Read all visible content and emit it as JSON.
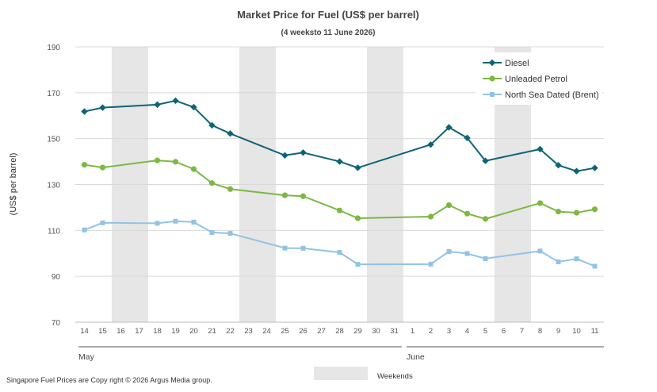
{
  "chart_data": {
    "type": "line",
    "title": "Market Price for Fuel (US$ per barrel)",
    "subtitle": "(4 weeksto 11 June 2026)",
    "ylabel": "(US$ per barrel)",
    "xlabel": "",
    "ylim": [
      70,
      190
    ],
    "yticks": [
      70,
      90,
      110,
      130,
      150,
      170,
      190
    ],
    "grid": true,
    "legend_position": "top-right",
    "x": [
      "14",
      "15",
      "16",
      "17",
      "18",
      "19",
      "20",
      "21",
      "22",
      "23",
      "24",
      "25",
      "26",
      "27",
      "28",
      "29",
      "30",
      "31",
      "1",
      "2",
      "3",
      "4",
      "5",
      "6",
      "7",
      "8",
      "9",
      "10",
      "11"
    ],
    "months": [
      {
        "label": "May",
        "start": "14",
        "end": "31"
      },
      {
        "label": "June",
        "start": "1",
        "end": "11"
      }
    ],
    "weekends": [
      [
        "16",
        "17"
      ],
      [
        "23",
        "24"
      ],
      [
        "30",
        "31"
      ],
      [
        "6",
        "7"
      ]
    ],
    "weekend_label": "Weekends",
    "series": [
      {
        "name": "Diesel",
        "color": "#0e6375",
        "marker": "diamond",
        "points": [
          {
            "x": "14",
            "y": 161.8
          },
          {
            "x": "15",
            "y": 163.5
          },
          {
            "x": "18",
            "y": 164.8
          },
          {
            "x": "19",
            "y": 166.5
          },
          {
            "x": "20",
            "y": 163.7
          },
          {
            "x": "21",
            "y": 155.8
          },
          {
            "x": "22",
            "y": 152.2
          },
          {
            "x": "25",
            "y": 142.7
          },
          {
            "x": "26",
            "y": 143.9
          },
          {
            "x": "28",
            "y": 140.0
          },
          {
            "x": "29",
            "y": 137.3
          },
          {
            "x": "2",
            "y": 147.4
          },
          {
            "x": "3",
            "y": 154.9
          },
          {
            "x": "4",
            "y": 150.3
          },
          {
            "x": "5",
            "y": 140.3
          },
          {
            "x": "8",
            "y": 145.4
          },
          {
            "x": "9",
            "y": 138.4
          },
          {
            "x": "10",
            "y": 135.8
          },
          {
            "x": "11",
            "y": 137.2
          }
        ]
      },
      {
        "name": "Unleaded Petrol",
        "color": "#7cb842",
        "marker": "circle",
        "points": [
          {
            "x": "14",
            "y": 138.6
          },
          {
            "x": "15",
            "y": 137.4
          },
          {
            "x": "18",
            "y": 140.5
          },
          {
            "x": "19",
            "y": 139.9
          },
          {
            "x": "20",
            "y": 136.7
          },
          {
            "x": "21",
            "y": 130.6
          },
          {
            "x": "22",
            "y": 128.0
          },
          {
            "x": "25",
            "y": 125.3
          },
          {
            "x": "26",
            "y": 124.9
          },
          {
            "x": "28",
            "y": 118.7
          },
          {
            "x": "29",
            "y": 115.3
          },
          {
            "x": "2",
            "y": 116.0
          },
          {
            "x": "3",
            "y": 121.0
          },
          {
            "x": "4",
            "y": 117.3
          },
          {
            "x": "5",
            "y": 115.0
          },
          {
            "x": "8",
            "y": 121.9
          },
          {
            "x": "9",
            "y": 118.2
          },
          {
            "x": "10",
            "y": 117.7
          },
          {
            "x": "11",
            "y": 119.2
          }
        ]
      },
      {
        "name": "North Sea Dated (Brent)",
        "color": "#92c3e3",
        "marker": "square",
        "points": [
          {
            "x": "14",
            "y": 110.2
          },
          {
            "x": "15",
            "y": 113.3
          },
          {
            "x": "18",
            "y": 113.1
          },
          {
            "x": "19",
            "y": 114.0
          },
          {
            "x": "20",
            "y": 113.6
          },
          {
            "x": "21",
            "y": 109.1
          },
          {
            "x": "22",
            "y": 108.7
          },
          {
            "x": "25",
            "y": 102.3
          },
          {
            "x": "26",
            "y": 102.2
          },
          {
            "x": "28",
            "y": 100.4
          },
          {
            "x": "29",
            "y": 95.2
          },
          {
            "x": "2",
            "y": 95.3
          },
          {
            "x": "3",
            "y": 100.8
          },
          {
            "x": "4",
            "y": 99.9
          },
          {
            "x": "5",
            "y": 97.7
          },
          {
            "x": "8",
            "y": 101.0
          },
          {
            "x": "9",
            "y": 96.3
          },
          {
            "x": "10",
            "y": 97.6
          },
          {
            "x": "11",
            "y": 94.4
          }
        ]
      }
    ]
  },
  "footer": {
    "copyright": "Singapore Fuel Prices are Copy right © 2026 Argus Media group."
  }
}
